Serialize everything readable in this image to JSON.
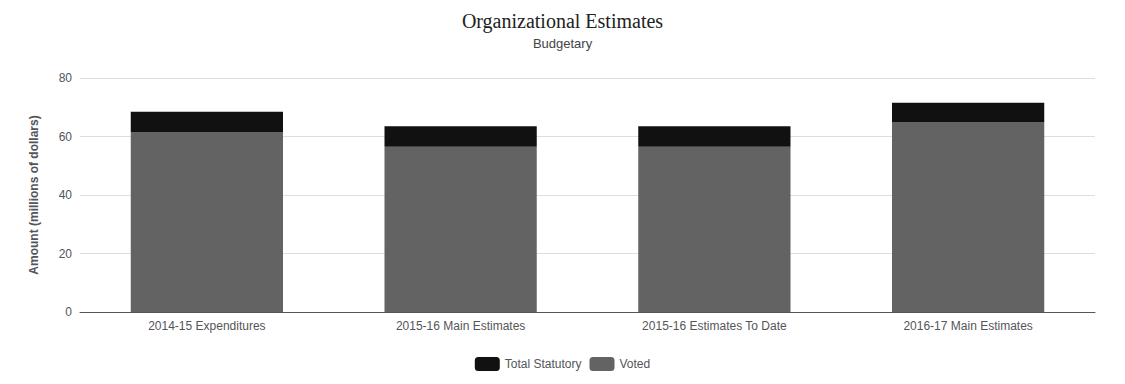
{
  "chart_data": {
    "type": "bar",
    "stacked": true,
    "title": "Organizational Estimates",
    "subtitle": "Budgetary",
    "ylabel": "Amount (millions of dollars)",
    "categories": [
      "2014-15 Expenditures",
      "2015-16 Main Estimates",
      "2015-16 Estimates To Date",
      "2016-17 Main Estimates"
    ],
    "series": [
      {
        "name": "Voted",
        "color": "#636363",
        "values": [
          61.5,
          56.5,
          56.5,
          65.0
        ]
      },
      {
        "name": "Total Statutory",
        "color": "#111111",
        "values": [
          7.0,
          7.0,
          7.0,
          6.5
        ]
      }
    ],
    "ylim": [
      0,
      80
    ],
    "yticks": [
      0,
      20,
      40,
      60,
      80
    ],
    "grid": true,
    "legend": "bottom"
  }
}
